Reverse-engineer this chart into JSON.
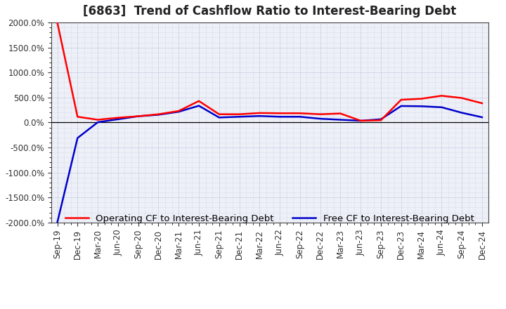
{
  "title": "[6863]  Trend of Cashflow Ratio to Interest-Bearing Debt",
  "ylim": [
    -2000,
    2000
  ],
  "yticks": [
    -2000,
    -1500,
    -1000,
    -500,
    0,
    500,
    1000,
    1500,
    2000
  ],
  "background_color": "#ffffff",
  "plot_bg_color": "#eef0f8",
  "grid_color": "#8899bb",
  "x_labels": [
    "Sep-19",
    "Dec-19",
    "Mar-20",
    "Jun-20",
    "Sep-20",
    "Dec-20",
    "Mar-21",
    "Jun-21",
    "Sep-21",
    "Dec-21",
    "Mar-22",
    "Jun-22",
    "Sep-22",
    "Dec-22",
    "Mar-23",
    "Jun-23",
    "Sep-23",
    "Dec-23",
    "Mar-24",
    "Jun-24",
    "Sep-24",
    "Dec-24"
  ],
  "operating_cf": [
    2000,
    115,
    55,
    95,
    125,
    165,
    230,
    430,
    165,
    165,
    190,
    185,
    185,
    165,
    180,
    35,
    45,
    455,
    475,
    535,
    490,
    385
  ],
  "free_cf": [
    -2000,
    -310,
    5,
    65,
    125,
    155,
    215,
    335,
    100,
    115,
    130,
    115,
    115,
    75,
    55,
    35,
    65,
    330,
    325,
    305,
    195,
    105
  ],
  "operating_color": "#ff0000",
  "free_color": "#0000cc",
  "line_width": 1.8,
  "legend_operating": "Operating CF to Interest-Bearing Debt",
  "legend_free": "Free CF to Interest-Bearing Debt",
  "title_fontsize": 12,
  "tick_fontsize": 8.5,
  "legend_fontsize": 9.5
}
